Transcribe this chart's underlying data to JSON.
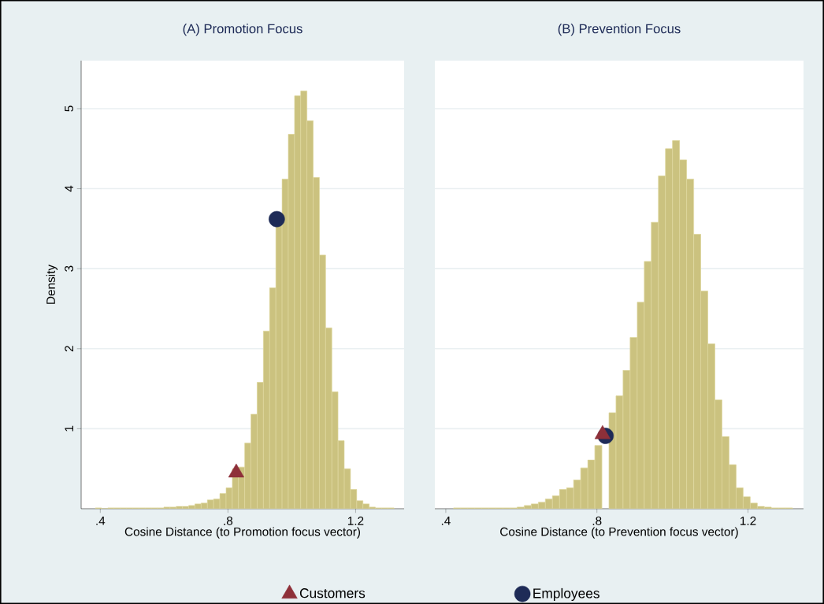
{
  "chart_data": [
    {
      "type": "histogram",
      "title": "(A) Promotion Focus",
      "xlabel": "Cosine Distance (to Promotion focus vector)",
      "ylabel": "Density",
      "bins": [
        0.3845,
        0.404,
        0.4235,
        0.443,
        0.4625,
        0.482,
        0.5015,
        0.521,
        0.5405,
        0.56,
        0.5795,
        0.599,
        0.6185,
        0.638,
        0.6575,
        0.677,
        0.6965,
        0.716,
        0.7355,
        0.755,
        0.7745,
        0.794,
        0.8135,
        0.833,
        0.8525,
        0.872,
        0.8915,
        0.911,
        0.9305,
        0.95,
        0.9695,
        0.989,
        1.0085,
        1.028,
        1.0475,
        1.067,
        1.0865,
        1.106,
        1.1255,
        1.145,
        1.1645,
        1.184,
        1.2035,
        1.223,
        1.2425,
        1.262,
        1.2815,
        1.301,
        1.3205
      ],
      "values": [
        0.01,
        0,
        0.01,
        0.01,
        0.01,
        0.01,
        0.01,
        0.01,
        0.01,
        0.01,
        0.01,
        0.02,
        0.02,
        0.03,
        0.03,
        0.04,
        0.06,
        0.07,
        0.11,
        0.12,
        0.19,
        0.26,
        0.5,
        0.52,
        0.82,
        1.18,
        1.58,
        2.22,
        2.76,
        3.55,
        4.12,
        4.68,
        5.16,
        5.22,
        4.85,
        4.14,
        3.17,
        2.26,
        1.46,
        0.85,
        0.5,
        0.24,
        0.1,
        0.06,
        0.02,
        0.01,
        0.01,
        0.01
      ],
      "color": "#cbc27f",
      "series": [
        {
          "type": "scatter",
          "name": "Customers",
          "color": "#8e3039",
          "marker": "triangle",
          "x": [
            0.826
          ],
          "values": [
            0.45
          ]
        },
        {
          "type": "scatter",
          "name": "Employees",
          "color": "#1e2b57",
          "marker": "circle",
          "x": [
            0.953
          ],
          "values": [
            3.62
          ]
        }
      ],
      "xlim": [
        0.34,
        1.352
      ],
      "ylim": [
        0,
        5.6
      ],
      "xticks": [
        {
          "value": 0.4,
          "label": ".4"
        },
        {
          "value": 0.8,
          "label": ".8"
        },
        {
          "value": 1.2,
          "label": "1.2"
        }
      ],
      "yticks": [
        1,
        2,
        3,
        4,
        5
      ],
      "grid": "y",
      "legend": "bottom"
    },
    {
      "type": "histogram",
      "title": "(B) Prevention Focus",
      "xlabel": "Cosine Distance (to Prevention focus vector)",
      "bins": [
        0.4205,
        0.4392,
        0.4579,
        0.4766,
        0.4953,
        0.514,
        0.5327,
        0.5514,
        0.5701,
        0.5888,
        0.6075,
        0.6262,
        0.6449,
        0.6636,
        0.6823,
        0.701,
        0.7197,
        0.7384,
        0.7571,
        0.7758,
        0.7945,
        0.8132,
        0.8319,
        0.8506,
        0.8693,
        0.888,
        0.9067,
        0.9254,
        0.9441,
        0.9628,
        0.9815,
        1.0002,
        1.0189,
        1.0376,
        1.0563,
        1.075,
        1.0937,
        1.1124,
        1.1311,
        1.1498,
        1.1685,
        1.1872,
        1.2059,
        1.2246,
        1.2433,
        1.262,
        1.2807,
        1.2994,
        1.3181
      ],
      "values": [
        0.01,
        0.01,
        0.01,
        0.01,
        0.01,
        0.01,
        0.01,
        0.01,
        0.01,
        0.02,
        0.04,
        0.06,
        0.08,
        0.12,
        0.16,
        0.24,
        0.26,
        0.36,
        0.51,
        0.61,
        0.79,
        null,
        1.2,
        1.41,
        1.73,
        2.14,
        2.58,
        3.09,
        3.58,
        4.16,
        4.5,
        4.6,
        4.36,
        4.12,
        3.43,
        2.72,
        2.06,
        1.36,
        0.9,
        0.55,
        0.26,
        0.15,
        0.07,
        0.03,
        0.02,
        0.01,
        0.01,
        0.01
      ],
      "color": "#cbc27f",
      "series": [
        {
          "type": "scatter",
          "color": "#1e2b57",
          "marker": "circle",
          "x": [
            0.823
          ],
          "values": [
            0.91
          ]
        },
        {
          "type": "scatter",
          "color": "#8e3039",
          "marker": "triangle",
          "x": [
            0.815
          ],
          "values": [
            0.93
          ]
        }
      ],
      "xlim": [
        0.371,
        1.347
      ],
      "ylim": [
        0,
        5.6
      ],
      "xticks": [
        {
          "value": 0.4,
          "label": ".4"
        },
        {
          "value": 0.8,
          "label": ".8"
        },
        {
          "value": 1.2,
          "label": "1.2"
        }
      ],
      "yticks": [
        1,
        2,
        3,
        4,
        5
      ],
      "grid": "y",
      "tick_labels": "x"
    }
  ]
}
